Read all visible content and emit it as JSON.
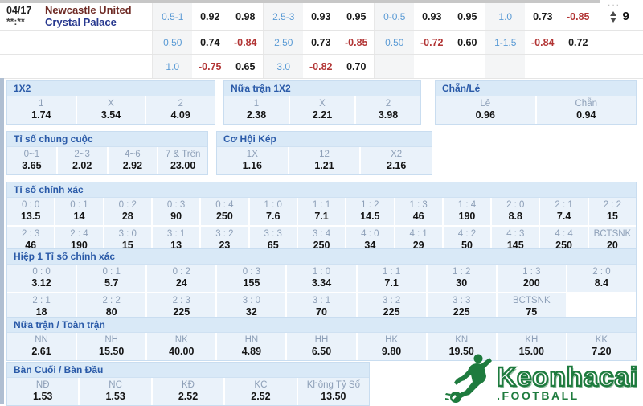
{
  "top": {
    "date": "04/17",
    "time": "**:**",
    "home_team": "Newcastle United",
    "away_team": "Crystal Palace",
    "more_count": "9",
    "more_dots": "...",
    "rows": [
      [
        "0.5-1",
        "0.92",
        "0.98",
        "2.5-3",
        "0.93",
        "0.95",
        "0-0.5",
        "0.93",
        "0.95",
        "1.0",
        "0.73",
        "-0.85"
      ],
      [
        "0.50",
        "0.74",
        "-0.84",
        "2.50",
        "0.73",
        "-0.85",
        "0.50",
        "-0.72",
        "0.60",
        "1-1.5",
        "-0.84",
        "0.72"
      ],
      [
        "1.0",
        "-0.75",
        "0.65",
        "3.0",
        "-0.82",
        "0.70",
        "",
        "",
        "",
        "",
        "",
        ""
      ]
    ]
  },
  "sections": {
    "x12": {
      "title": "1X2",
      "cols": [
        [
          "1",
          "1.74"
        ],
        [
          "X",
          "3.54"
        ],
        [
          "2",
          "4.09"
        ]
      ]
    },
    "ht_x12": {
      "title": "Nữa trận 1X2",
      "cols": [
        [
          "1",
          "2.38"
        ],
        [
          "X",
          "2.21"
        ],
        [
          "2",
          "3.98"
        ]
      ]
    },
    "odd_even": {
      "title": "Chẵn/Lẻ",
      "cols": [
        [
          "Lẻ",
          "0.96"
        ],
        [
          "Chẵn",
          "0.94"
        ]
      ]
    },
    "total_goals": {
      "title": "Tỉ số chung cuộc",
      "cols": [
        [
          "0~1",
          "3.65"
        ],
        [
          "2~3",
          "2.02"
        ],
        [
          "4~6",
          "2.92"
        ],
        [
          "7 & Trên",
          "23.00"
        ]
      ]
    },
    "double_chance": {
      "title": "Cơ Hội Kép",
      "cols": [
        [
          "1X",
          "1.16"
        ],
        [
          "12",
          "1.21"
        ],
        [
          "X2",
          "2.16"
        ]
      ]
    },
    "exact_score": {
      "title": "Tỉ số chính xác",
      "row1": [
        [
          "0 : 0",
          "13.5"
        ],
        [
          "0 : 1",
          "14"
        ],
        [
          "0 : 2",
          "28"
        ],
        [
          "0 : 3",
          "90"
        ],
        [
          "0 : 4",
          "250"
        ],
        [
          "1 : 0",
          "7.6"
        ],
        [
          "1 : 1",
          "7.1"
        ],
        [
          "1 : 2",
          "14.5"
        ],
        [
          "1 : 3",
          "46"
        ],
        [
          "1 : 4",
          "190"
        ],
        [
          "2 : 0",
          "8.8"
        ],
        [
          "2 : 1",
          "7.4"
        ],
        [
          "2 : 2",
          "15"
        ]
      ],
      "row2": [
        [
          "2 : 3",
          "46"
        ],
        [
          "2 : 4",
          "190"
        ],
        [
          "3 : 0",
          "15"
        ],
        [
          "3 : 1",
          "13"
        ],
        [
          "3 : 2",
          "23"
        ],
        [
          "3 : 3",
          "65"
        ],
        [
          "3 : 4",
          "250"
        ],
        [
          "4 : 0",
          "34"
        ],
        [
          "4 : 1",
          "29"
        ],
        [
          "4 : 2",
          "50"
        ],
        [
          "4 : 3",
          "145"
        ],
        [
          "4 : 4",
          "250"
        ],
        [
          "BCTSNK",
          "20"
        ]
      ]
    },
    "ht_exact_score": {
      "title": "Hiệp 1 Tỉ số chính xác",
      "row1": [
        [
          "0 : 0",
          "3.12"
        ],
        [
          "0 : 1",
          "5.7"
        ],
        [
          "0 : 2",
          "24"
        ],
        [
          "0 : 3",
          "155"
        ],
        [
          "1 : 0",
          "3.34"
        ],
        [
          "1 : 1",
          "7.1"
        ],
        [
          "1 : 2",
          "30"
        ],
        [
          "1 : 3",
          "200"
        ],
        [
          "2 : 0",
          "8.4"
        ]
      ],
      "row2": [
        [
          "2 : 1",
          "18"
        ],
        [
          "2 : 2",
          "80"
        ],
        [
          "2 : 3",
          "225"
        ],
        [
          "3 : 0",
          "32"
        ],
        [
          "3 : 1",
          "70"
        ],
        [
          "3 : 2",
          "225"
        ],
        [
          "3 : 3",
          "225"
        ],
        [
          "BCTSNK",
          "75"
        ],
        [
          "",
          ""
        ]
      ]
    },
    "ht_ft": {
      "title": "Nữa trận / Toàn trận",
      "cols": [
        [
          "NN",
          "2.61"
        ],
        [
          "NH",
          "15.50"
        ],
        [
          "NK",
          "40.00"
        ],
        [
          "HN",
          "4.89"
        ],
        [
          "HH",
          "6.50"
        ],
        [
          "HK",
          "9.80"
        ],
        [
          "KN",
          "19.50"
        ],
        [
          "KH",
          "15.00"
        ],
        [
          "KK",
          "7.20"
        ]
      ]
    },
    "last_first_goal": {
      "title": "Bàn Cuối / Bàn Đầu",
      "cols": [
        [
          "NĐ",
          "1.53"
        ],
        [
          "NC",
          "1.53"
        ],
        [
          "KĐ",
          "2.52"
        ],
        [
          "KC",
          "2.52"
        ],
        [
          "Không Tỷ Số",
          "13.50"
        ]
      ]
    }
  },
  "logo": {
    "main": "Keonhacai",
    "sub": ".FOOTBALL",
    "green": "#1e7b3e"
  }
}
